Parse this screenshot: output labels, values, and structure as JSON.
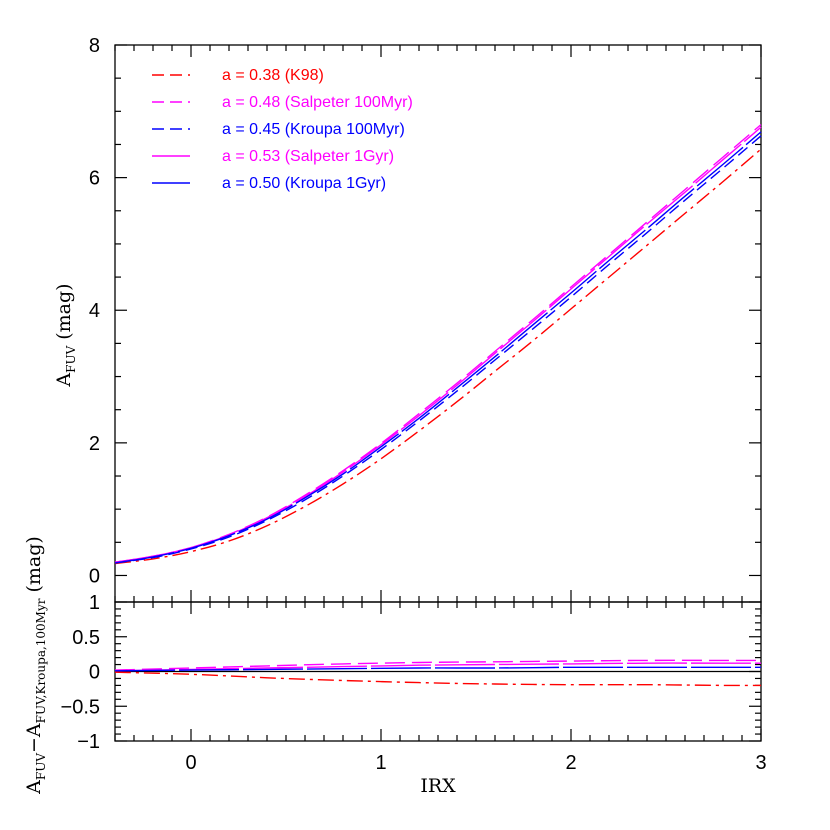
{
  "chart_data": [
    {
      "type": "line",
      "panel": "top",
      "ylabel_main": "A",
      "ylabel_sub": "FUV",
      "ylabel_unit": "(mag)",
      "xlim": [
        -0.4,
        3.0
      ],
      "ylim": [
        -0.4,
        8.0
      ],
      "xticks": [
        0,
        1,
        2,
        3
      ],
      "xtick_labels": [
        "0",
        "1",
        "2",
        "3"
      ],
      "yticks": [
        0,
        2,
        4,
        6,
        8
      ],
      "ytick_labels": [
        "0",
        "2",
        "4",
        "6",
        "8"
      ],
      "grid": false,
      "legend_position": "top-left",
      "x": [
        -0.4,
        -0.2,
        0.0,
        0.2,
        0.4,
        0.6,
        0.8,
        1.0,
        1.2,
        1.4,
        1.6,
        1.8,
        2.0,
        2.2,
        2.4,
        2.6,
        2.8,
        3.0
      ],
      "series": [
        {
          "name": "a = 0.38 (K98)",
          "color": "#ff0000",
          "dash": "dashdot",
          "values": [
            0.18,
            0.25,
            0.36,
            0.52,
            0.75,
            1.04,
            1.38,
            1.76,
            2.18,
            2.62,
            3.08,
            3.54,
            4.02,
            4.5,
            4.98,
            5.46,
            5.94,
            6.43
          ]
        },
        {
          "name": "a = 0.48 (Salpeter 100Myr)",
          "color": "#ff00ff",
          "dash": "longdash",
          "values": [
            0.2,
            0.29,
            0.42,
            0.62,
            0.88,
            1.21,
            1.58,
            1.99,
            2.44,
            2.9,
            3.38,
            3.86,
            4.35,
            4.84,
            5.33,
            5.82,
            6.31,
            6.8
          ]
        },
        {
          "name": "a = 0.45 (Kroupa 100Myr)",
          "color": "#0000ff",
          "dash": "dash",
          "values": [
            0.19,
            0.27,
            0.4,
            0.58,
            0.83,
            1.14,
            1.5,
            1.9,
            2.33,
            2.78,
            3.25,
            3.72,
            4.2,
            4.69,
            5.17,
            5.66,
            6.14,
            6.63
          ]
        },
        {
          "name": "a = 0.53 (Salpeter 1Gyr)",
          "color": "#ff00ff",
          "dash": "solid-dash",
          "values": [
            0.2,
            0.29,
            0.42,
            0.61,
            0.87,
            1.19,
            1.56,
            1.97,
            2.41,
            2.87,
            3.35,
            3.83,
            4.32,
            4.81,
            5.3,
            5.78,
            6.27,
            6.76
          ]
        },
        {
          "name": "a = 0.50 (Kroupa 1Gyr)",
          "color": "#0000ff",
          "dash": "solid-dash",
          "values": [
            0.19,
            0.28,
            0.41,
            0.6,
            0.85,
            1.17,
            1.53,
            1.94,
            2.37,
            2.83,
            3.3,
            3.78,
            4.26,
            4.75,
            5.23,
            5.72,
            6.2,
            6.69
          ]
        }
      ]
    },
    {
      "type": "line",
      "panel": "bottom",
      "xlabel": "IRX",
      "ylabel_main": "A",
      "ylabel_sub1": "FUV",
      "ylabel_minus": "−A",
      "ylabel_sub2": "FUV,Kroupa,100Myr",
      "ylabel_unit": "(mag)",
      "xlim": [
        -0.4,
        3.0
      ],
      "ylim": [
        -1.0,
        1.0
      ],
      "yticks": [
        -1,
        -0.5,
        0,
        0.5,
        1
      ],
      "ytick_labels": [
        "−1",
        "−0.5",
        "0",
        "0.5",
        "1"
      ],
      "grid": false,
      "x": [
        -0.4,
        0.0,
        0.4,
        0.8,
        1.2,
        1.6,
        2.0,
        2.4,
        2.8,
        3.0
      ],
      "series": [
        {
          "name": "a = 0.38 (K98)",
          "color": "#ff0000",
          "dash": "dashdot",
          "values": [
            -0.01,
            -0.04,
            -0.09,
            -0.13,
            -0.16,
            -0.18,
            -0.19,
            -0.19,
            -0.2,
            -0.2
          ]
        },
        {
          "name": "a = 0.48 (Salpeter 100Myr)",
          "color": "#ff00ff",
          "dash": "longdash",
          "values": [
            0.02,
            0.05,
            0.08,
            0.11,
            0.13,
            0.14,
            0.15,
            0.16,
            0.16,
            0.16
          ]
        },
        {
          "name": "a = 0.53 (Salpeter 1Gyr)",
          "color": "#ff00ff",
          "dash": "solid-dash",
          "values": [
            0.01,
            0.03,
            0.05,
            0.07,
            0.09,
            0.1,
            0.11,
            0.12,
            0.12,
            0.12
          ]
        },
        {
          "name": "a = 0.50 (Kroupa 1Gyr)",
          "color": "#0000ff",
          "dash": "solid-dash",
          "values": [
            0.01,
            0.02,
            0.03,
            0.04,
            0.05,
            0.05,
            0.06,
            0.06,
            0.06,
            0.06
          ]
        }
      ],
      "reference": {
        "name": "a = 0.45 (Kroupa 100Myr)",
        "color": "#000000",
        "value": 0
      }
    }
  ]
}
